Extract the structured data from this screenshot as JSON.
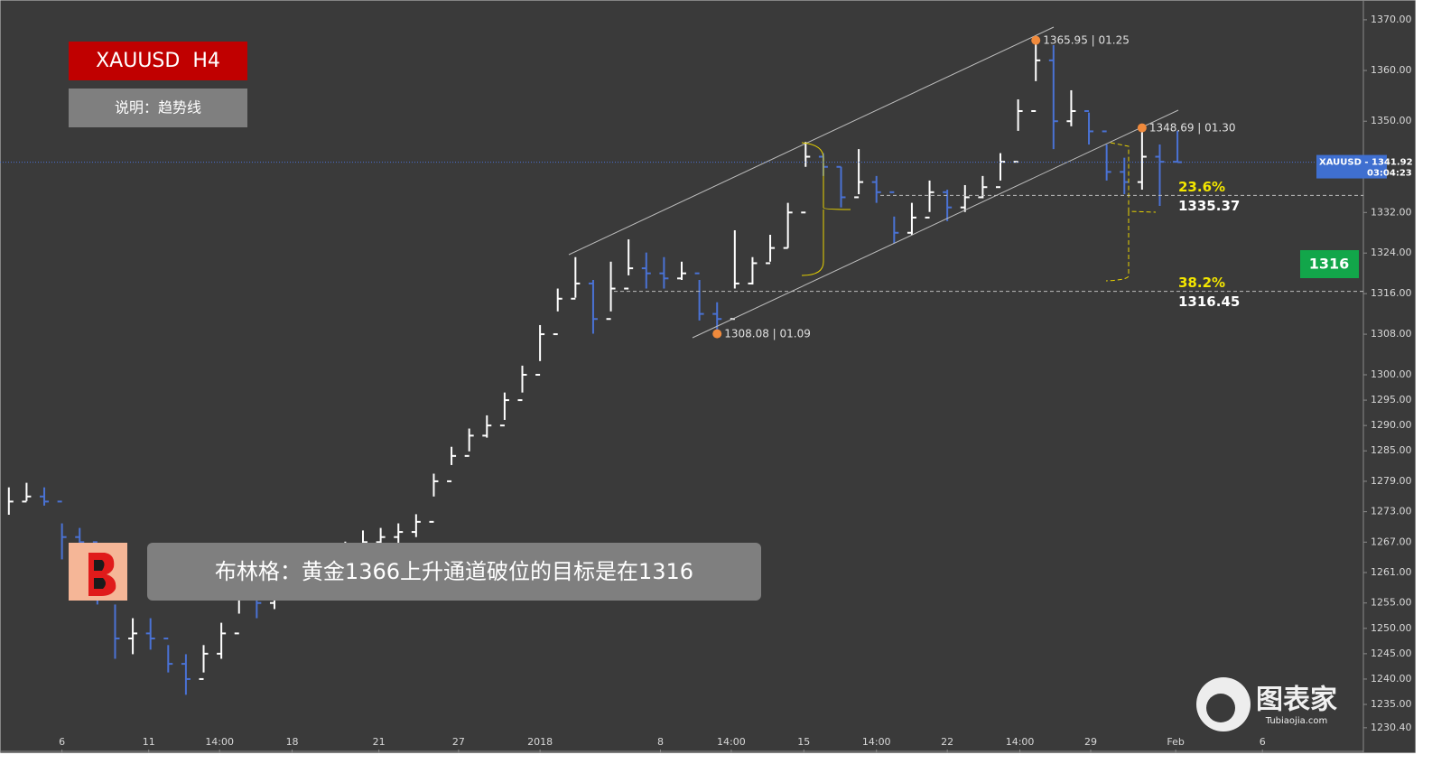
{
  "chart_data": {
    "type": "ohlc",
    "title": "XAUUSD  H4",
    "subtitle": "说明：趋势线",
    "headline": "布林格：黄金1366上升通道破位的目标是在1316",
    "x": [
      0.5,
      1.5,
      2.5,
      3.5,
      4.5,
      5.5,
      6.5,
      7.5,
      8.5,
      9.5,
      10.5,
      11.5,
      12.5,
      13.5,
      14.5,
      15.5,
      16.5,
      17.5,
      18.5,
      19.5,
      20.5,
      21.5,
      22.5,
      23.5,
      24.5,
      25.5,
      26.5,
      27.5,
      28.5,
      29.5,
      30.5,
      31.5,
      32.5,
      33.5,
      34.5,
      35.5,
      36.5,
      37.5,
      38.5,
      39.5,
      40.5,
      41.5,
      42.5,
      43.5,
      44.5,
      45.5,
      46.5,
      47.5,
      48.5,
      49.5,
      50.5,
      51.5,
      52.5,
      53.5,
      54.5,
      55.5,
      56.5,
      57.5,
      58.5,
      59.5,
      60.5,
      61.5,
      62.5,
      63.5,
      64.5,
      65.5,
      66.5
    ],
    "high": [
      1277.8,
      1278.7,
      1277.8,
      1270.7,
      1269.8,
      1260,
      1254.7,
      1252,
      1252,
      1246.7,
      1244.9,
      1246.7,
      1251.1,
      1260,
      1258.2,
      1260,
      1261.8,
      1263.6,
      1265.3,
      1267.1,
      1269.3,
      1269.8,
      1270.7,
      1272.5,
      1280.5,
      1285.8,
      1289.4,
      1292,
      1296.5,
      1301.8,
      1309.8,
      1317,
      1323.2,
      1318.7,
      1322.3,
      1326.7,
      1324.1,
      1323.2,
      1322.3,
      1318.7,
      1314.3,
      1328.5,
      1323.2,
      1327.6,
      1333.9,
      1345.9,
      1343.7,
      1341,
      1344.5,
      1339.2,
      1331.2,
      1333.9,
      1338.3,
      1336.5,
      1337.4,
      1339.2,
      1343.7,
      1354.3,
      1365.95,
      1365,
      1356.1,
      1351.7,
      1345.4,
      1342.8,
      1348.69,
      1345.4,
      1348.1
    ],
    "low": [
      1272.4,
      1275.1,
      1274.2,
      1263.6,
      1264.4,
      1254.7,
      1244,
      1244.9,
      1245.8,
      1241.3,
      1236.9,
      1241.3,
      1244,
      1252.9,
      1252,
      1253.8,
      1255.5,
      1258.2,
      1260,
      1262.7,
      1265.3,
      1266.2,
      1266.2,
      1268,
      1276,
      1282.2,
      1284.9,
      1287.6,
      1291.1,
      1296.5,
      1302.7,
      1312.5,
      1315.2,
      1308.1,
      1312.5,
      1319.6,
      1317,
      1317,
      1318.7,
      1310.7,
      1308.08,
      1317,
      1317.8,
      1322.3,
      1325,
      1341,
      1339.2,
      1333,
      1335.6,
      1333.9,
      1325.9,
      1327.6,
      1332.1,
      1330.3,
      1332.1,
      1334.8,
      1338.3,
      1348.1,
      1357.9,
      1344.5,
      1349,
      1345.4,
      1338.3,
      1335.6,
      1336.5,
      1333.3,
      1341.9
    ],
    "values": [
      1275,
      1276,
      1275,
      1268,
      1267,
      1257,
      1248,
      1249,
      1248,
      1243,
      1240,
      1245,
      1249,
      1257,
      1255,
      1258,
      1259,
      1261,
      1263,
      1265,
      1267,
      1268,
      1269,
      1271,
      1279,
      1284,
      1288,
      1290,
      1295,
      1300,
      1308,
      1315,
      1318,
      1311,
      1317,
      1321,
      1320,
      1319,
      1320,
      1312,
      1311,
      1318,
      1322,
      1325,
      1332,
      1343,
      1341,
      1335,
      1338,
      1336,
      1328,
      1331,
      1336,
      1333,
      1335,
      1337,
      1342,
      1352,
      1362,
      1350,
      1352,
      1348,
      1340,
      1338,
      1343,
      1342,
      1341.92
    ],
    "up_color": "#ffffff",
    "down_color": "#4a72d4",
    "xlim": [
      0,
      77
    ],
    "xticks": [
      {
        "value": 3.5,
        "label": "6"
      },
      {
        "value": 8.4,
        "label": "11"
      },
      {
        "value": 12.4,
        "label": "14:00"
      },
      {
        "value": 16.5,
        "label": "18"
      },
      {
        "value": 21.4,
        "label": "21"
      },
      {
        "value": 25.9,
        "label": "27"
      },
      {
        "value": 30.5,
        "label": "2018"
      },
      {
        "value": 37.3,
        "label": "8"
      },
      {
        "value": 41.3,
        "label": "14:00"
      },
      {
        "value": 45.4,
        "label": "15"
      },
      {
        "value": 49.5,
        "label": "14:00"
      },
      {
        "value": 53.5,
        "label": "22"
      },
      {
        "value": 57.6,
        "label": "14:00"
      },
      {
        "value": 61.6,
        "label": "29"
      },
      {
        "value": 66.4,
        "label": "Feb"
      },
      {
        "value": 71.3,
        "label": "6"
      }
    ],
    "ylim": [
      1226.1,
      1373.9
    ],
    "yticks": [
      {
        "value": 1370,
        "label": "1370.00"
      },
      {
        "value": 1360,
        "label": "1360.00"
      },
      {
        "value": 1350,
        "label": "1350.00"
      },
      {
        "value": 1332,
        "label": "1332.00"
      },
      {
        "value": 1324,
        "label": "1324.00"
      },
      {
        "value": 1316,
        "label": "1316.00"
      },
      {
        "value": 1308,
        "label": "1308.00"
      },
      {
        "value": 1300,
        "label": "1300.00"
      },
      {
        "value": 1295,
        "label": "1295.00"
      },
      {
        "value": 1290,
        "label": "1290.00"
      },
      {
        "value": 1285,
        "label": "1285.00"
      },
      {
        "value": 1279,
        "label": "1279.00"
      },
      {
        "value": 1273,
        "label": "1273.00"
      },
      {
        "value": 1267,
        "label": "1267.00"
      },
      {
        "value": 1261,
        "label": "1261.00"
      },
      {
        "value": 1255,
        "label": "1255.00"
      },
      {
        "value": 1250,
        "label": "1250.00"
      },
      {
        "value": 1245,
        "label": "1245.00"
      },
      {
        "value": 1240,
        "label": "1240.00"
      },
      {
        "value": 1235,
        "label": "1235.00"
      },
      {
        "value": 1230.4,
        "label": "1230.40"
      }
    ],
    "extremes": [
      {
        "x": 58.5,
        "y": 1365.95,
        "date": "01.25"
      },
      {
        "x": 64.5,
        "y": 1348.69,
        "date": "01.30"
      },
      {
        "x": 40.5,
        "y": 1308.08,
        "date": "01.09"
      }
    ],
    "fib_levels": [
      {
        "label": "23.6%",
        "value": 1335.37
      },
      {
        "label": "38.2%",
        "value": 1316.45
      }
    ],
    "current": {
      "symbol": "XAUUSD",
      "price": 1341.92,
      "timer": "03:04:23"
    },
    "target": 1316,
    "brand": {
      "name": "图表家",
      "site": "Tubiaojia.com"
    }
  }
}
